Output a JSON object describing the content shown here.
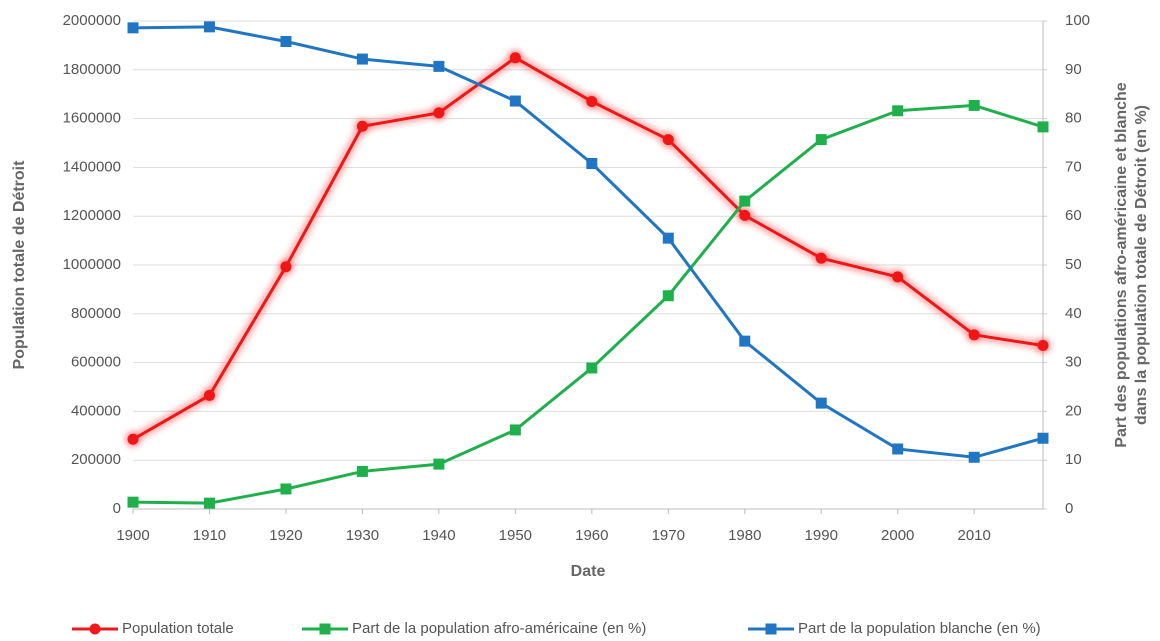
{
  "chart_data": {
    "type": "line",
    "x": [
      1900,
      1910,
      1920,
      1930,
      1940,
      1950,
      1960,
      1970,
      1980,
      1990,
      2000,
      2010,
      2019
    ],
    "xlim": [
      1900,
      2019
    ],
    "xticks": [
      1900,
      1910,
      1920,
      1930,
      1940,
      1950,
      1960,
      1970,
      1980,
      1990,
      2000,
      2010
    ],
    "xlabel": "Date",
    "ylabel": "Population totale de Détroit",
    "y2label": [
      "Part des populations afro-américaine et blanche",
      "dans la population totale de Détroit (en %)"
    ],
    "ylim": [
      0,
      2000000
    ],
    "yticks": [
      0,
      200000,
      400000,
      600000,
      800000,
      1000000,
      1200000,
      1400000,
      1600000,
      1800000,
      2000000
    ],
    "y2lim": [
      0,
      100
    ],
    "y2ticks": [
      0,
      10,
      20,
      30,
      40,
      50,
      60,
      70,
      80,
      90,
      100
    ],
    "grid": true,
    "legend": "bottom",
    "series": [
      {
        "name": "Population totale",
        "color": "#f01818",
        "marker": "circle",
        "glow": true,
        "values": [
          285704,
          465766,
          993078,
          1568662,
          1623452,
          1849568,
          1670144,
          1514063,
          1203339,
          1027974,
          951270,
          713777,
          670031
        ]
      },
      {
        "name": "Part de la population afro-américaine (en %)",
        "color": "#1fb04c",
        "marker": "square",
        "axis": "y2",
        "values": [
          1.4,
          1.2,
          4.1,
          7.7,
          9.2,
          16.2,
          28.9,
          43.7,
          63.1,
          75.7,
          81.6,
          82.7,
          78.3
        ]
      },
      {
        "name": "Part de la population blanche (en %)",
        "color": "#2176c4",
        "marker": "square",
        "axis": "y2",
        "values": [
          98.6,
          98.8,
          95.8,
          92.2,
          90.7,
          83.6,
          70.8,
          55.5,
          34.4,
          21.7,
          12.3,
          10.6,
          14.5
        ]
      }
    ]
  }
}
